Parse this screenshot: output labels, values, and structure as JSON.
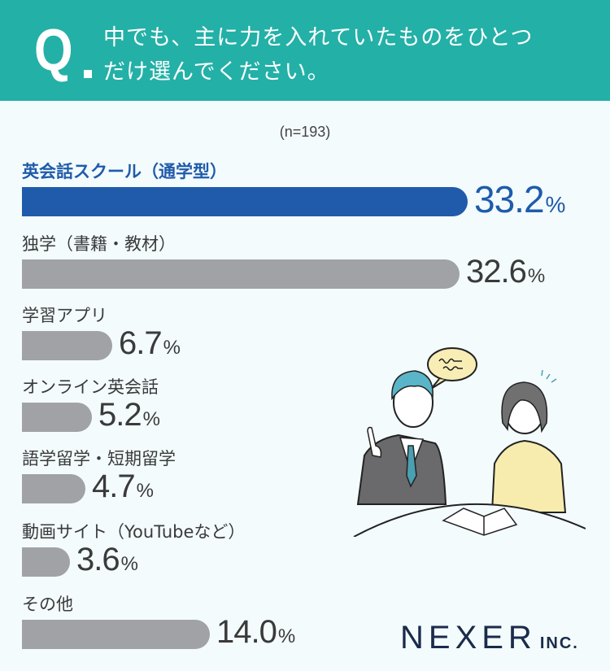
{
  "header": {
    "q_mark": "Q",
    "question": "中でも、主に力を入れていたものをひとつ\nだけ選んでください。",
    "background_color": "#23b0a7"
  },
  "sample_size": "(n=193)",
  "colors": {
    "highlight": "#1f5baa",
    "bar": "#a0a2a5",
    "text": "#3a3a3a",
    "logo": "#1a2b4b"
  },
  "items": [
    {
      "label": "英会話スクール（通学型）",
      "value": "33.2",
      "unit": "%",
      "highlight": true
    },
    {
      "label": "独学（書籍・教材）",
      "value": "32.6",
      "unit": "%"
    },
    {
      "label": "学習アプリ",
      "value": "6.7",
      "unit": "%"
    },
    {
      "label": "オンライン英会話",
      "value": "5.2",
      "unit": "%"
    },
    {
      "label": "語学留学・短期留学",
      "value": "4.7",
      "unit": "%"
    },
    {
      "label": "動画サイト（YouTubeなど）",
      "value": "3.6",
      "unit": "%"
    },
    {
      "label": "その他",
      "value": "14.0",
      "unit": "%"
    }
  ],
  "logo": {
    "main": "NEXER",
    "suffix": "INC."
  },
  "chart_data": {
    "type": "bar",
    "orientation": "horizontal",
    "title": "中でも、主に力を入れていたものをひとつだけ選んでください。",
    "subtitle": "(n=193)",
    "categories": [
      "英会話スクール（通学型）",
      "独学（書籍・教材）",
      "学習アプリ",
      "オンライン英会話",
      "語学留学・短期留学",
      "動画サイト（YouTubeなど）",
      "その他"
    ],
    "values": [
      33.2,
      32.6,
      6.7,
      5.2,
      4.7,
      3.6,
      14.0
    ],
    "unit": "%",
    "xlabel": "",
    "ylabel": "",
    "grid": false,
    "legend": "none",
    "highlight_index": 0
  }
}
